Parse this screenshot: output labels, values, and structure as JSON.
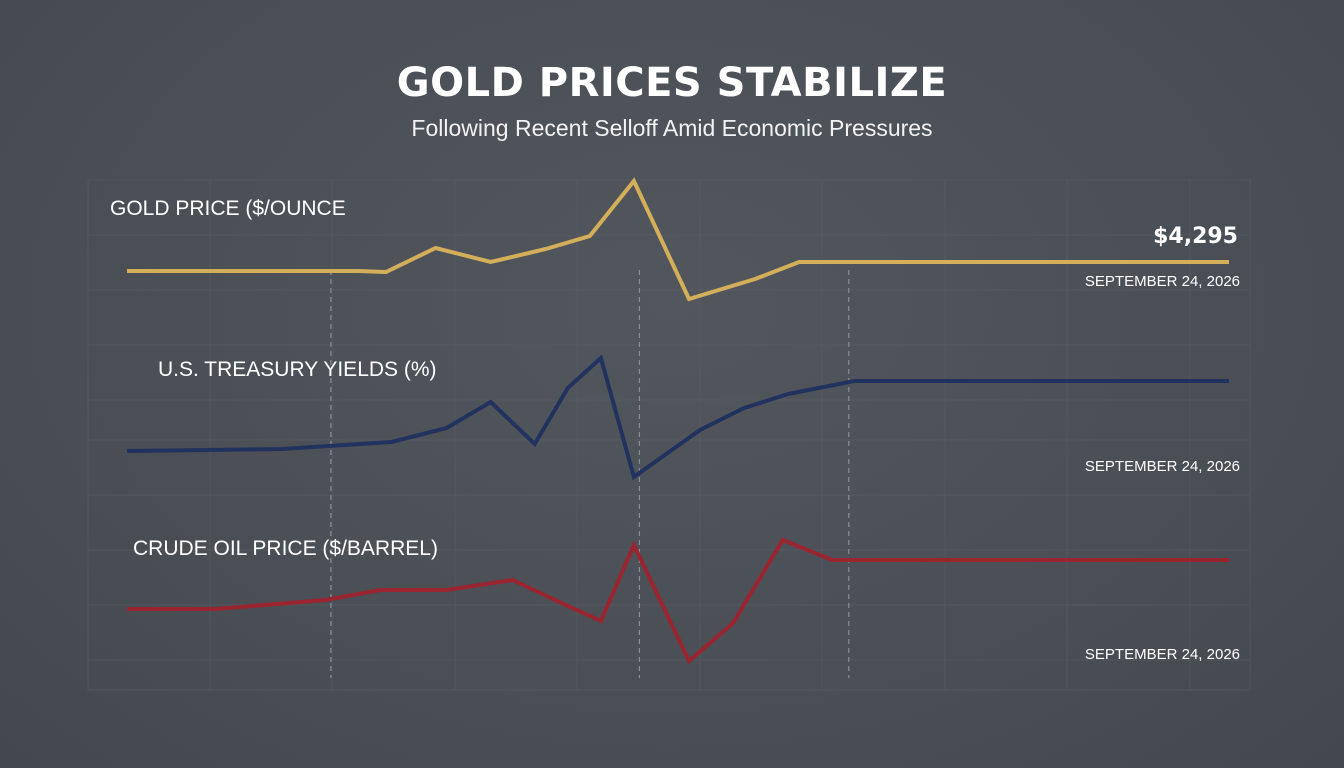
{
  "title": "GOLD PRICES STABILIZE",
  "subtitle": "Following Recent Selloff Amid Economic Pressures",
  "colors": {
    "background": "#4a4e55",
    "gold": "#d4af5a",
    "treasury": "#22325e",
    "oil": "#9a2530",
    "grid": "#5a5e65",
    "marker": "#8a8e95"
  },
  "chart_data": [
    {
      "type": "line",
      "label": "GOLD PRICE ($/OUNCE",
      "value_label": "$4,295",
      "date_label": "SEPTEMBER 24, 2026",
      "series": [
        {
          "name": "",
          "x": [
            0,
            21,
            23.5,
            28,
            33,
            38,
            42,
            46,
            51,
            57,
            61,
            66,
            100
          ],
          "y": [
            271,
            271,
            272,
            248,
            262,
            249,
            236,
            181,
            299,
            279,
            262,
            262,
            262
          ],
          "color_key": "gold"
        }
      ],
      "ylim": [
        170,
        310
      ]
    },
    {
      "type": "line",
      "label": "U.S. TREASURY YIELDS (%)",
      "value_label": "",
      "date_label": "SEPTEMBER 24, 2026",
      "series": [
        {
          "name": "",
          "x": [
            0,
            14,
            24,
            29,
            33,
            37,
            40,
            43,
            46,
            52,
            56,
            60,
            66,
            100
          ],
          "y": [
            451,
            449,
            442,
            428,
            402,
            444,
            388,
            358,
            477,
            430,
            408,
            394,
            381,
            381
          ],
          "color_key": "treasury"
        }
      ],
      "ylim": [
        350,
        490
      ]
    },
    {
      "type": "line",
      "label": "CRUDE OIL PRICE ($/BARREL)",
      "value_label": "",
      "date_label": "SEPTEMBER 24, 2026",
      "series": [
        {
          "name": "",
          "x": [
            0,
            8,
            18,
            23,
            29,
            35,
            40,
            43,
            46,
            51,
            55,
            59.5,
            64,
            100
          ],
          "y": [
            609,
            609,
            600,
            590,
            590,
            580,
            606,
            621,
            545,
            661,
            623,
            540,
            560,
            560
          ],
          "color_key": "oil"
        }
      ],
      "ylim": [
        530,
        670
      ]
    }
  ],
  "grid": true,
  "event_markers_x": [
    18.5,
    46.5,
    65.5
  ]
}
